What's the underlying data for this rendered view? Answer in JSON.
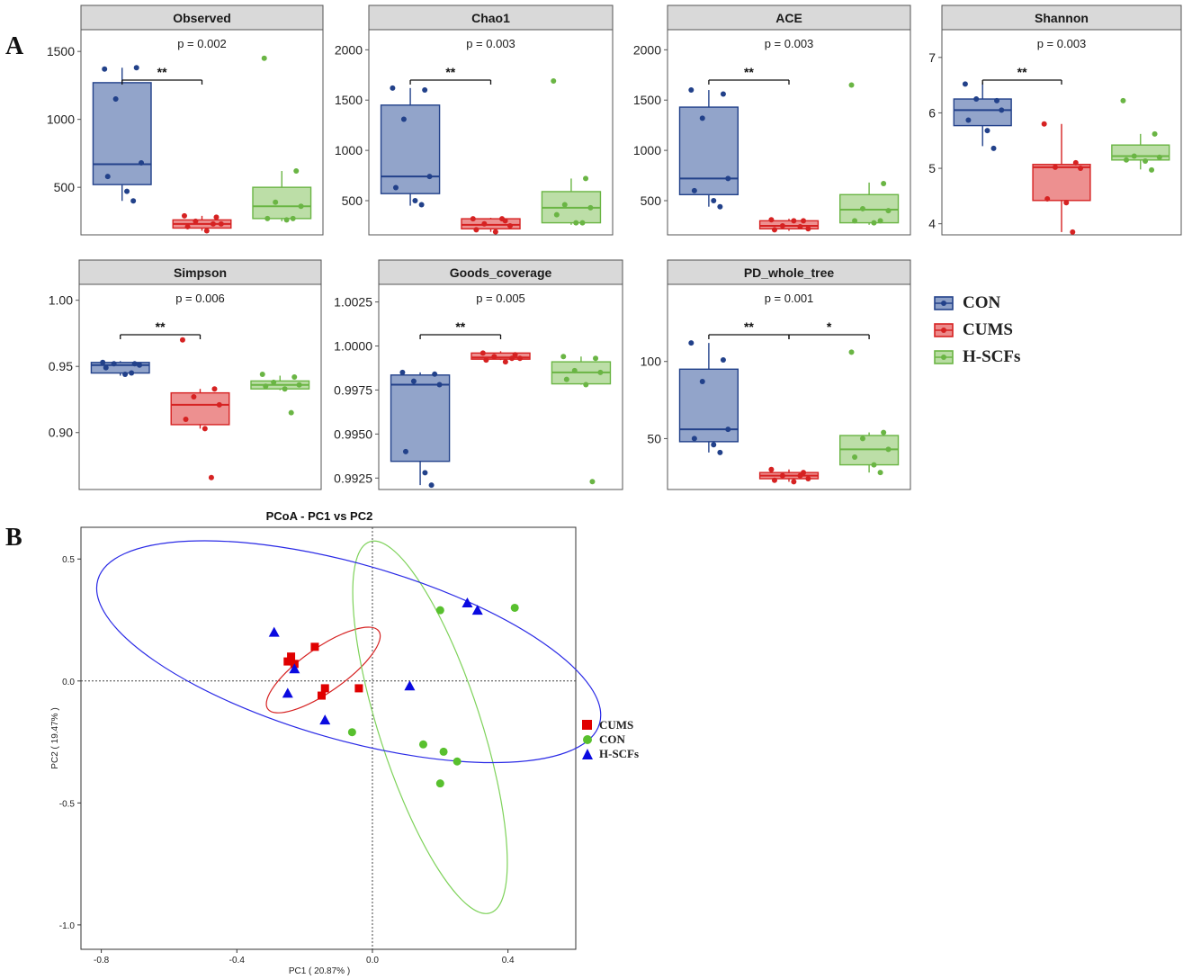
{
  "panel_labels": {
    "a": "A",
    "b": "B"
  },
  "colors": {
    "CON": {
      "line": "#22418a",
      "fill": "#8c9fc7"
    },
    "CUMS": {
      "line": "#d62222",
      "fill": "#ec8a8a"
    },
    "H-SCFs": {
      "line": "#6ab544",
      "fill": "#b8dca2"
    },
    "strip": "#d9d9d9",
    "pcoa_CUMS": "#e00000",
    "pcoa_CON": "#58c02e",
    "pcoa_HSCFs": "#0a0ae0",
    "ellipse_CUMS": "#d62222",
    "ellipse_CON": "#7ed25a",
    "ellipse_HSCFs": "#2a2ae6"
  },
  "legend_a": [
    "CON",
    "CUMS",
    "H-SCFs"
  ],
  "legend_b": [
    "CUMS",
    "CON",
    "H-SCFs"
  ],
  "chart_data": [
    {
      "type": "box",
      "title": "Observed",
      "pvalue": "p = 0.002",
      "ylim": [
        150,
        1660
      ],
      "yticks": [
        500,
        1000,
        1500
      ],
      "ytick_labels": [
        "500",
        "1000",
        "1500"
      ],
      "groups": [
        {
          "name": "CON",
          "box": {
            "min": 400,
            "q1": 520,
            "median": 670,
            "q3": 1270,
            "max": 1380
          },
          "points": [
            1370,
            1380,
            1150,
            680,
            580,
            470,
            400
          ]
        },
        {
          "name": "CUMS",
          "box": {
            "min": 180,
            "q1": 200,
            "median": 230,
            "q3": 260,
            "max": 290
          },
          "points": [
            290,
            280,
            250,
            230,
            210,
            180,
            230
          ]
        },
        {
          "name": "H-SCFs",
          "box": {
            "min": 250,
            "q1": 270,
            "median": 360,
            "q3": 500,
            "max": 620
          },
          "points": [
            1450,
            620,
            390,
            360,
            270,
            260,
            270
          ]
        }
      ],
      "sig": [
        {
          "from": 0,
          "to": 1,
          "label": "**"
        }
      ]
    },
    {
      "type": "box",
      "title": "Chao1",
      "pvalue": "p = 0.003",
      "ylim": [
        160,
        2200
      ],
      "yticks": [
        500,
        1000,
        1500,
        2000
      ],
      "ytick_labels": [
        "500",
        "1000",
        "1500",
        "2000"
      ],
      "groups": [
        {
          "name": "CON",
          "box": {
            "min": 450,
            "q1": 570,
            "median": 740,
            "q3": 1450,
            "max": 1620
          },
          "points": [
            1620,
            1600,
            1310,
            740,
            630,
            500,
            460
          ]
        },
        {
          "name": "CUMS",
          "box": {
            "min": 190,
            "q1": 220,
            "median": 260,
            "q3": 320,
            "max": 330
          },
          "points": [
            320,
            300,
            270,
            250,
            210,
            190,
            320
          ]
        },
        {
          "name": "H-SCFs",
          "box": {
            "min": 260,
            "q1": 280,
            "median": 430,
            "q3": 590,
            "max": 720
          },
          "points": [
            1690,
            720,
            460,
            430,
            360,
            280,
            280
          ]
        }
      ],
      "sig": [
        {
          "from": 0,
          "to": 1,
          "label": "**"
        }
      ]
    },
    {
      "type": "box",
      "title": "ACE",
      "pvalue": "p = 0.003",
      "ylim": [
        160,
        2200
      ],
      "yticks": [
        500,
        1000,
        1500,
        2000
      ],
      "ytick_labels": [
        "500",
        "1000",
        "1500",
        "2000"
      ],
      "groups": [
        {
          "name": "CON",
          "box": {
            "min": 440,
            "q1": 560,
            "median": 720,
            "q3": 1430,
            "max": 1600
          },
          "points": [
            1600,
            1560,
            1320,
            720,
            600,
            500,
            440
          ]
        },
        {
          "name": "CUMS",
          "box": {
            "min": 200,
            "q1": 220,
            "median": 250,
            "q3": 300,
            "max": 320
          },
          "points": [
            310,
            300,
            250,
            220,
            210,
            300,
            240
          ]
        },
        {
          "name": "H-SCFs",
          "box": {
            "min": 260,
            "q1": 280,
            "median": 410,
            "q3": 560,
            "max": 680
          },
          "points": [
            1650,
            670,
            420,
            400,
            300,
            280,
            300
          ]
        }
      ],
      "sig": [
        {
          "from": 0,
          "to": 1,
          "label": "**"
        }
      ]
    },
    {
      "type": "box",
      "title": "Shannon",
      "pvalue": "p = 0.003",
      "ylim": [
        3.8,
        7.5
      ],
      "yticks": [
        4,
        5,
        6,
        7
      ],
      "ytick_labels": [
        "4",
        "5",
        "6",
        "7"
      ],
      "groups": [
        {
          "name": "CON",
          "box": {
            "min": 5.4,
            "q1": 5.77,
            "median": 6.05,
            "q3": 6.25,
            "max": 6.55
          },
          "points": [
            6.52,
            6.22,
            6.25,
            6.05,
            5.87,
            5.68,
            5.36
          ]
        },
        {
          "name": "CUMS",
          "box": {
            "min": 3.85,
            "q1": 4.42,
            "median": 5.02,
            "q3": 5.07,
            "max": 5.8
          },
          "points": [
            5.8,
            5.1,
            5.02,
            5.0,
            4.45,
            4.38,
            3.85
          ]
        },
        {
          "name": "H-SCFs",
          "box": {
            "min": 4.98,
            "q1": 5.15,
            "median": 5.22,
            "q3": 5.42,
            "max": 5.62
          },
          "points": [
            6.22,
            5.62,
            5.22,
            5.2,
            5.15,
            5.13,
            4.97
          ]
        }
      ],
      "sig": [
        {
          "from": 0,
          "to": 1,
          "label": "**"
        }
      ]
    },
    {
      "type": "box",
      "title": "Simpson",
      "pvalue": "p = 0.006",
      "ylim": [
        0.857,
        1.012
      ],
      "yticks": [
        0.9,
        0.95,
        1.0
      ],
      "ytick_labels": [
        "0.90",
        "0.95",
        "1.00"
      ],
      "groups": [
        {
          "name": "CON",
          "box": {
            "min": 0.943,
            "q1": 0.945,
            "median": 0.951,
            "q3": 0.953,
            "max": 0.954
          },
          "points": [
            0.953,
            0.952,
            0.952,
            0.951,
            0.949,
            0.944,
            0.945
          ]
        },
        {
          "name": "CUMS",
          "box": {
            "min": 0.903,
            "q1": 0.906,
            "median": 0.921,
            "q3": 0.93,
            "max": 0.933
          },
          "points": [
            0.97,
            0.933,
            0.927,
            0.921,
            0.91,
            0.903,
            0.866
          ]
        },
        {
          "name": "H-SCFs",
          "box": {
            "min": 0.932,
            "q1": 0.933,
            "median": 0.936,
            "q3": 0.939,
            "max": 0.943
          },
          "points": [
            0.944,
            0.942,
            0.938,
            0.936,
            0.935,
            0.933,
            0.915
          ]
        }
      ],
      "sig": [
        {
          "from": 0,
          "to": 1,
          "label": "**"
        }
      ]
    },
    {
      "type": "box",
      "title": "Goods_coverage",
      "pvalue": "p = 0.005",
      "ylim": [
        0.99185,
        1.0035
      ],
      "yticks": [
        0.9925,
        0.995,
        0.9975,
        1.0,
        1.0025
      ],
      "ytick_labels": [
        "0.9925",
        "0.9950",
        "0.9975",
        "1.0000",
        "1.0025"
      ],
      "groups": [
        {
          "name": "CON",
          "box": {
            "min": 0.9921,
            "q1": 0.99345,
            "median": 0.9978,
            "q3": 0.99835,
            "max": 0.9985
          },
          "points": [
            0.9985,
            0.9984,
            0.998,
            0.9978,
            0.994,
            0.9928,
            0.9921
          ]
        },
        {
          "name": "CUMS",
          "box": {
            "min": 0.9992,
            "q1": 0.99925,
            "median": 0.99935,
            "q3": 0.9996,
            "max": 0.9997
          },
          "points": [
            0.9996,
            0.9995,
            0.9994,
            0.9993,
            0.9992,
            0.9991,
            0.9993
          ]
        },
        {
          "name": "H-SCFs",
          "box": {
            "min": 0.9978,
            "q1": 0.99785,
            "median": 0.9985,
            "q3": 0.9991,
            "max": 0.9994
          },
          "points": [
            0.9994,
            0.9993,
            0.9986,
            0.9985,
            0.9981,
            0.9978,
            0.9923
          ]
        }
      ],
      "sig": [
        {
          "from": 0,
          "to": 1,
          "label": "**"
        }
      ]
    },
    {
      "type": "box",
      "title": "PD_whole_tree",
      "pvalue": "p = 0.001",
      "ylim": [
        17,
        150
      ],
      "yticks": [
        50,
        100
      ],
      "ytick_labels": [
        "50",
        "100"
      ],
      "groups": [
        {
          "name": "CON",
          "box": {
            "min": 41,
            "q1": 48,
            "median": 56,
            "q3": 95,
            "max": 112
          },
          "points": [
            112,
            101,
            87,
            56,
            50,
            46,
            41
          ]
        },
        {
          "name": "CUMS",
          "box": {
            "min": 22,
            "q1": 24,
            "median": 26,
            "q3": 28,
            "max": 30
          },
          "points": [
            30,
            28,
            26,
            24,
            23,
            22,
            26
          ]
        },
        {
          "name": "H-SCFs",
          "box": {
            "min": 28,
            "q1": 33,
            "median": 43,
            "q3": 52,
            "max": 54
          },
          "points": [
            106,
            54,
            50,
            43,
            38,
            33,
            28
          ]
        }
      ],
      "sig": [
        {
          "from": 0,
          "to": 1,
          "label": "**"
        },
        {
          "from": 1,
          "to": 2,
          "label": "*"
        }
      ]
    },
    {
      "type": "scatter",
      "title": "PCoA - PC1 vs PC2",
      "xlabel": "PC1 ( 20.87% )",
      "ylabel": "PC2 ( 19.47% )",
      "xlim": [
        -0.86,
        0.6
      ],
      "ylim": [
        -1.1,
        0.63
      ],
      "xticks": [
        -0.8,
        -0.4,
        0.0,
        0.4
      ],
      "xtick_labels": [
        "-0.8",
        "-0.4",
        "0.0",
        "0.4"
      ],
      "yticks": [
        -1.0,
        -0.5,
        0.0,
        0.5
      ],
      "ytick_labels": [
        "-1.0",
        "-0.5",
        "0.0",
        "0.5"
      ],
      "series": [
        {
          "name": "CUMS",
          "marker": "square",
          "points": [
            [
              -0.24,
              0.1
            ],
            [
              -0.25,
              0.08
            ],
            [
              -0.17,
              0.14
            ],
            [
              -0.23,
              0.07
            ],
            [
              -0.04,
              -0.03
            ],
            [
              -0.14,
              -0.03
            ],
            [
              -0.15,
              -0.06
            ]
          ]
        },
        {
          "name": "CON",
          "marker": "circle",
          "points": [
            [
              0.2,
              0.29
            ],
            [
              0.42,
              0.3
            ],
            [
              -0.06,
              -0.21
            ],
            [
              0.15,
              -0.26
            ],
            [
              0.21,
              -0.29
            ],
            [
              0.25,
              -0.33
            ],
            [
              0.2,
              -0.42
            ]
          ]
        },
        {
          "name": "H-SCFs",
          "marker": "triangle",
          "points": [
            [
              -0.29,
              0.2
            ],
            [
              -0.25,
              -0.05
            ],
            [
              -0.23,
              0.05
            ],
            [
              -0.14,
              -0.16
            ],
            [
              0.11,
              -0.02
            ],
            [
              0.28,
              0.32
            ],
            [
              0.31,
              0.29
            ]
          ]
        }
      ],
      "ellipses": [
        {
          "name": "CUMS",
          "cx": -0.145,
          "cy": 0.045,
          "rx": 0.2,
          "ry": 0.09,
          "angle": -35
        },
        {
          "name": "CON",
          "cx": 0.17,
          "cy": -0.19,
          "rx": 0.15,
          "ry": 0.8,
          "angle": -18
        },
        {
          "name": "H-SCFs",
          "cx": -0.07,
          "cy": 0.12,
          "rx": 0.77,
          "ry": 0.36,
          "angle": 16
        }
      ]
    }
  ]
}
